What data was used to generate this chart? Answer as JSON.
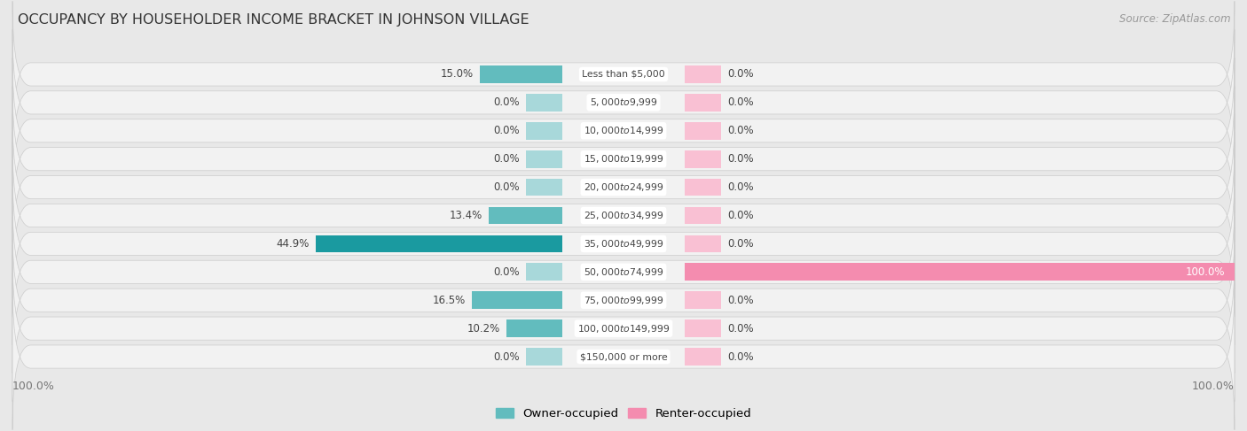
{
  "title": "OCCUPANCY BY HOUSEHOLDER INCOME BRACKET IN JOHNSON VILLAGE",
  "source": "Source: ZipAtlas.com",
  "categories": [
    "Less than $5,000",
    "$5,000 to $9,999",
    "$10,000 to $14,999",
    "$15,000 to $19,999",
    "$20,000 to $24,999",
    "$25,000 to $34,999",
    "$35,000 to $49,999",
    "$50,000 to $74,999",
    "$75,000 to $99,999",
    "$100,000 to $149,999",
    "$150,000 or more"
  ],
  "owner_values": [
    15.0,
    0.0,
    0.0,
    0.0,
    0.0,
    13.4,
    44.9,
    0.0,
    16.5,
    10.2,
    0.0
  ],
  "renter_values": [
    0.0,
    0.0,
    0.0,
    0.0,
    0.0,
    0.0,
    0.0,
    100.0,
    0.0,
    0.0,
    0.0
  ],
  "owner_color": "#62bcbe",
  "owner_color_dark": "#1a9aa0",
  "renter_color": "#f48caf",
  "renter_color_stub": "#f9c0d3",
  "owner_color_stub": "#a8d8da",
  "background_color": "#e8e8e8",
  "row_bg_color": "#f2f2f2",
  "label_color": "#444444",
  "title_color": "#333333",
  "axis_label_color": "#777777",
  "max_value": 100.0,
  "stub_size": 6.0,
  "bar_height": 0.62,
  "figsize": [
    14.06,
    4.87
  ],
  "dpi": 100
}
